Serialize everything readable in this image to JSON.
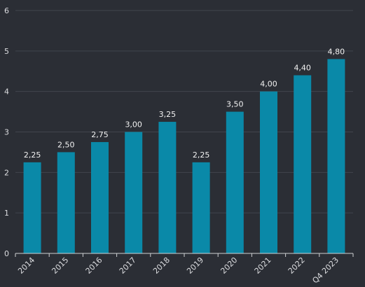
{
  "chart_data": {
    "type": "bar",
    "categories": [
      "2014",
      "2015",
      "2016",
      "2017",
      "2018",
      "2019",
      "2020",
      "2021",
      "2022",
      "Q4 2023"
    ],
    "values": [
      2.25,
      2.5,
      2.75,
      3.0,
      3.25,
      2.25,
      3.5,
      4.0,
      4.4,
      4.8
    ],
    "data_labels": [
      "2,25",
      "2,50",
      "2,75",
      "3,00",
      "3,25",
      "2,25",
      "3,50",
      "4,00",
      "4,40",
      "4,80"
    ],
    "y_ticks": [
      "0",
      "1",
      "2",
      "3",
      "4",
      "5",
      "6"
    ],
    "ylim": [
      0,
      6
    ],
    "grid": true,
    "legend": "none",
    "colors": {
      "background": "#2b2e35",
      "bar": "#0a89a8",
      "grid": "#41454d",
      "axis": "#cfd1d4"
    }
  }
}
